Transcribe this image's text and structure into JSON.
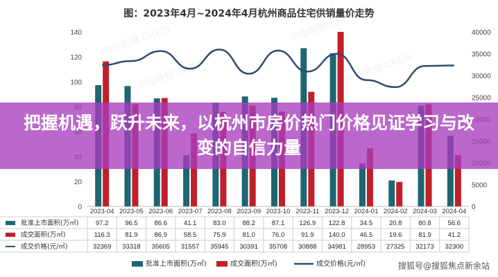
{
  "banner": {
    "title": "把握机遇，跃升未来，以杭州市房价热门价格见证学习与改变的自信力量"
  },
  "watermark": "搜狐号@搜狐焦点新余站",
  "chart_data": {
    "type": "bar",
    "title": "图：2023年4月~2024年4月杭州商品住宅供销量价走势",
    "categories": [
      "2023-04",
      "2023-05",
      "2023-06",
      "2023-07",
      "2023-08",
      "2023-09",
      "2023-10",
      "2023-11",
      "2023-12",
      "2024-01",
      "2024-02",
      "2024-03",
      "2024-04"
    ],
    "series": [
      {
        "name": "批准上市面积(万㎡)",
        "type": "bar",
        "axis": "left",
        "color": "#1e6672",
        "values": [
          97.2,
          96.5,
          86.6,
          41.1,
          83.0,
          88.2,
          87.1,
          126.9,
          122.8,
          34.5,
          20.8,
          80.8,
          56.6
        ]
      },
      {
        "name": "成交面积(万㎡)",
        "type": "bar",
        "axis": "left",
        "color": "#c0202a",
        "values": [
          116.3,
          81.9,
          86.9,
          58.5,
          75.9,
          81.0,
          76.0,
          91.9,
          140.0,
          46.5,
          19.6,
          81.9,
          41.2
        ]
      },
      {
        "name": "成交价格(元/㎡)",
        "type": "line",
        "axis": "right",
        "color": "#2f4a6e",
        "values": [
          32369,
          33318,
          35605,
          31557,
          35945,
          30391,
          35708,
          30888,
          34981,
          28953,
          27325,
          32173,
          32300
        ]
      }
    ],
    "yleft": {
      "min": 0,
      "max": 140,
      "ticks": [
        0,
        20,
        40,
        60,
        80,
        100,
        120,
        140
      ]
    },
    "yright": {
      "min": 0,
      "max": 40000,
      "ticks": [
        0,
        5000,
        10000,
        15000,
        20000,
        25000,
        30000,
        35000,
        40000
      ]
    },
    "watermark_text": "中指数据 CREIS",
    "table_rows": [
      {
        "label": "批准上市面积(万㎡)",
        "values": [
          "97.2",
          "96.5",
          "86.6",
          "41.1",
          "83.0",
          "88.2",
          "87.1",
          "126.9",
          "122.8",
          "34.5",
          "20.8",
          "80.8",
          "56.6"
        ]
      },
      {
        "label": "成交面积(万㎡)",
        "values": [
          "116.3",
          "81.9",
          "86.9",
          "58.5",
          "75.9",
          "81.0",
          "76.0",
          "91.9",
          "140.0",
          "46.5",
          "19.6",
          "81.9",
          "41.2"
        ]
      },
      {
        "label": "成交价格(元/㎡)",
        "values": [
          "32369",
          "33318",
          "35605",
          "31557",
          "35945",
          "30391",
          "35708",
          "30888",
          "34981",
          "28953",
          "27325",
          "32173",
          "32300"
        ]
      }
    ]
  }
}
